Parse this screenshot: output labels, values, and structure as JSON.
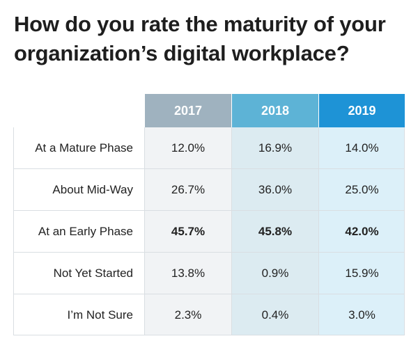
{
  "title": "How do you rate the maturity of your organization’s digital workplace?",
  "colors": {
    "header": [
      "#9fb2bf",
      "#5db3d6",
      "#1e93d6"
    ],
    "column_bg": [
      "#f1f3f5",
      "#dcebf1",
      "#dcf0f9"
    ],
    "border": "#d9dee2"
  },
  "chart_data": {
    "type": "table",
    "columns": [
      "2017",
      "2018",
      "2019"
    ],
    "rows": [
      {
        "label": "At a Mature Phase",
        "values": [
          "12.0%",
          "16.9%",
          "14.0%"
        ],
        "bold": false
      },
      {
        "label": "About Mid-Way",
        "values": [
          "26.7%",
          "36.0%",
          "25.0%"
        ],
        "bold": false
      },
      {
        "label": "At an Early Phase",
        "values": [
          "45.7%",
          "45.8%",
          "42.0%"
        ],
        "bold": true
      },
      {
        "label": "Not Yet Started",
        "values": [
          "13.8%",
          "0.9%",
          "15.9%"
        ],
        "bold": false
      },
      {
        "label": "I’m Not Sure",
        "values": [
          "2.3%",
          "0.4%",
          "3.0%"
        ],
        "bold": false
      }
    ]
  }
}
